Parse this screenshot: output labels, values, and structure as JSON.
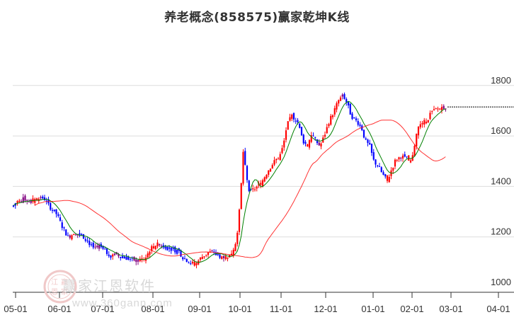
{
  "title": "养老概念(858575)赢家乾坤K线",
  "watermark": {
    "brand": "赢家江恩软件",
    "url": "www.360gann.com",
    "seal_chars": [
      "江",
      "赢",
      "恩",
      "家"
    ]
  },
  "colors": {
    "up": "#ff0000",
    "down": "#0000ff",
    "neutral": "#800080",
    "ma_short": "#008000",
    "ma_long": "#ff0000",
    "grid": "#dddddd",
    "axis": "#333333",
    "tick_label": "#333333"
  },
  "chart_data": {
    "type": "candlestick",
    "title": "养老概念(858575)赢家乾坤K线",
    "xlabel": "",
    "ylabel": "",
    "ylim": [
      1000,
      1850
    ],
    "y_ticks": [
      1000,
      1200,
      1400,
      1600,
      1800
    ],
    "x_ticks": [
      "05-01",
      "06-01",
      "07-01",
      "08-01",
      "09-01",
      "10-01",
      "11-01",
      "12-01",
      "01-01",
      "02-01",
      "03-01",
      "04-01"
    ],
    "grid": true,
    "last_close": 1715,
    "series": [
      {
        "name": "K线",
        "type": "candlestick"
      },
      {
        "name": "短期均线",
        "type": "line",
        "color": "#008000"
      },
      {
        "name": "长期均线",
        "type": "line",
        "color": "#ff0000"
      }
    ],
    "monthly_approx_close": [
      {
        "month": "05-01",
        "value": 1340
      },
      {
        "month": "06-01",
        "value": 1200
      },
      {
        "month": "07-01",
        "value": 1120
      },
      {
        "month": "08-01",
        "value": 1160
      },
      {
        "month": "09-01",
        "value": 1110
      },
      {
        "month": "10-01",
        "value": 1400
      },
      {
        "month": "11-01",
        "value": 1560
      },
      {
        "month": "12-01",
        "value": 1640
      },
      {
        "month": "01-01",
        "value": 1470
      },
      {
        "month": "02-01",
        "value": 1520
      },
      {
        "month": "03-01",
        "value": 1715
      }
    ],
    "key_points": {
      "start": 1320,
      "may_high": 1365,
      "aug_low": 1085,
      "oct_spike_high": 1640,
      "nov_high": 1700,
      "dec_high": 1780,
      "jan_low": 1410,
      "feb_end": 1715
    }
  }
}
